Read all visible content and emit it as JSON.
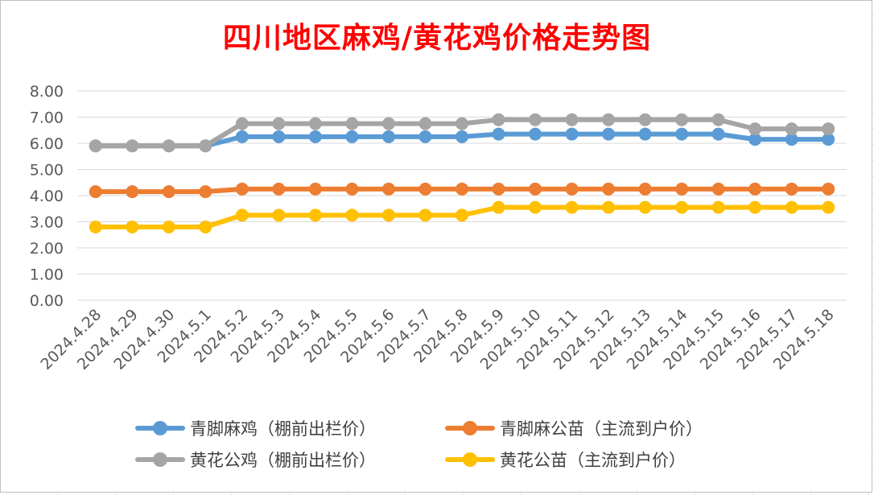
{
  "chart_data": {
    "type": "line",
    "title": "四川地区麻鸡/黄花鸡价格走势图",
    "xlabel": "",
    "ylabel": "",
    "ylim": [
      0,
      8
    ],
    "yticks": [
      "0.00",
      "1.00",
      "2.00",
      "3.00",
      "4.00",
      "5.00",
      "6.00",
      "7.00",
      "8.00"
    ],
    "grid": true,
    "legend_position": "bottom",
    "categories": [
      "2024.4.28",
      "2024.4.29",
      "2024.4.30",
      "2024.5.1",
      "2024.5.2",
      "2024.5.3",
      "2024.5.4",
      "2024.5.5",
      "2024.5.6",
      "2024.5.7",
      "2024.5.8",
      "2024.5.9",
      "2024.5.10",
      "2024.5.11",
      "2024.5.12",
      "2024.5.13",
      "2024.5.14",
      "2024.5.15",
      "2024.5.16",
      "2024.5.17",
      "2024.5.18"
    ],
    "series": [
      {
        "name": "青脚麻鸡（棚前出栏价）",
        "color": "#5b9bd5",
        "values": [
          5.9,
          5.9,
          5.9,
          5.9,
          6.25,
          6.25,
          6.25,
          6.25,
          6.25,
          6.25,
          6.25,
          6.35,
          6.35,
          6.35,
          6.35,
          6.35,
          6.35,
          6.35,
          6.15,
          6.15,
          6.15
        ]
      },
      {
        "name": "青脚麻公苗（主流到户价）",
        "color": "#ed7d31",
        "values": [
          4.15,
          4.15,
          4.15,
          4.15,
          4.25,
          4.25,
          4.25,
          4.25,
          4.25,
          4.25,
          4.25,
          4.25,
          4.25,
          4.25,
          4.25,
          4.25,
          4.25,
          4.25,
          4.25,
          4.25,
          4.25
        ]
      },
      {
        "name": "黄花公鸡（棚前出栏价）",
        "color": "#a5a5a5",
        "values": [
          5.9,
          5.9,
          5.9,
          5.9,
          6.75,
          6.75,
          6.75,
          6.75,
          6.75,
          6.75,
          6.75,
          6.9,
          6.9,
          6.9,
          6.9,
          6.9,
          6.9,
          6.9,
          6.55,
          6.55,
          6.55
        ]
      },
      {
        "name": "黄花公苗（主流到户价）",
        "color": "#ffc000",
        "values": [
          2.8,
          2.8,
          2.8,
          2.8,
          3.25,
          3.25,
          3.25,
          3.25,
          3.25,
          3.25,
          3.25,
          3.55,
          3.55,
          3.55,
          3.55,
          3.55,
          3.55,
          3.55,
          3.55,
          3.55,
          3.55
        ]
      }
    ]
  }
}
